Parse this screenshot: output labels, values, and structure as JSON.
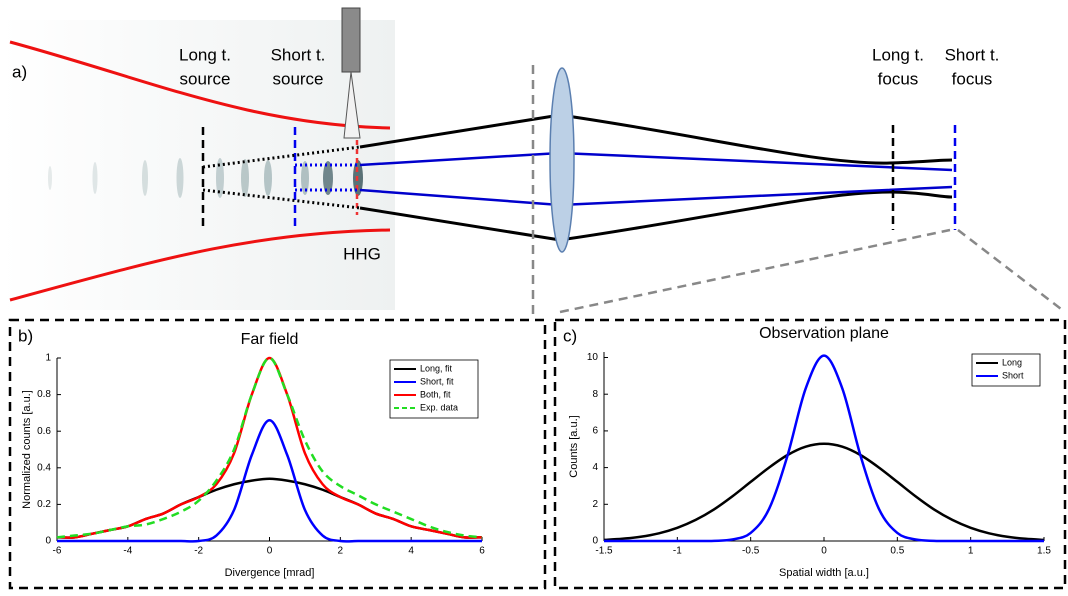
{
  "diagram": {
    "label": "a)",
    "long_source": [
      "Long t.",
      "source"
    ],
    "short_source": [
      "Short t.",
      "source"
    ],
    "hhg": "HHG",
    "long_focus": [
      "Long t.",
      "focus"
    ],
    "short_focus": [
      "Short t.",
      "focus"
    ]
  },
  "chart_data": [
    {
      "type": "line",
      "panel_label": "b)",
      "title": "Far field",
      "x_label": "Divergence [mrad]",
      "y_label": "Normalized counts [a.u.]",
      "x": [
        -6,
        -5.5,
        -5,
        -4.5,
        -4,
        -3.5,
        -3,
        -2.5,
        -2,
        -1.5,
        -1,
        -0.5,
        0,
        0.5,
        1,
        1.5,
        2,
        2.5,
        3,
        3.5,
        4,
        4.5,
        5,
        5.5,
        6
      ],
      "series": [
        {
          "name": "Long, fit",
          "color": "#000000",
          "style": "solid",
          "values": [
            0.02,
            0.02,
            0.04,
            0.06,
            0.08,
            0.12,
            0.15,
            0.2,
            0.24,
            0.28,
            0.31,
            0.33,
            0.34,
            0.33,
            0.31,
            0.28,
            0.24,
            0.2,
            0.15,
            0.12,
            0.08,
            0.06,
            0.04,
            0.02,
            0.02
          ]
        },
        {
          "name": "Short, fit",
          "color": "#0000ff",
          "style": "solid",
          "values": [
            0,
            0,
            0,
            0,
            0,
            0,
            0,
            0,
            0,
            0.03,
            0.17,
            0.47,
            0.66,
            0.47,
            0.17,
            0.03,
            0,
            0,
            0,
            0,
            0,
            0,
            0,
            0,
            0
          ]
        },
        {
          "name": "Both, fit",
          "color": "#ff0000",
          "style": "solid",
          "values": [
            0.02,
            0.02,
            0.04,
            0.06,
            0.08,
            0.12,
            0.15,
            0.2,
            0.24,
            0.31,
            0.48,
            0.8,
            1.0,
            0.8,
            0.48,
            0.31,
            0.24,
            0.2,
            0.15,
            0.12,
            0.08,
            0.06,
            0.04,
            0.02,
            0.02
          ]
        },
        {
          "name": "Exp. data",
          "color": "#22dd22",
          "style": "dashed",
          "values": [
            0.02,
            0.03,
            0.04,
            0.06,
            0.08,
            0.09,
            0.12,
            0.16,
            0.22,
            0.33,
            0.5,
            0.8,
            1.0,
            0.8,
            0.55,
            0.38,
            0.3,
            0.25,
            0.2,
            0.16,
            0.12,
            0.08,
            0.05,
            0.03,
            0.02
          ]
        }
      ],
      "xlim": [
        -6,
        6
      ],
      "ylim": [
        0,
        1
      ],
      "xticks": [
        -6,
        -4,
        -2,
        0,
        2,
        4,
        6
      ],
      "yticks": [
        0,
        0.2,
        0.4,
        0.6,
        0.8,
        1
      ],
      "legend": "top-right"
    },
    {
      "type": "line",
      "panel_label": "c)",
      "title": "Observation plane",
      "x_label": "Spatial width [a.u.]",
      "y_label": "Counts [a.u.]",
      "x": [
        -1.5,
        -1.375,
        -1.25,
        -1.125,
        -1,
        -0.875,
        -0.75,
        -0.625,
        -0.5,
        -0.375,
        -0.25,
        -0.125,
        0,
        0.125,
        0.25,
        0.375,
        0.5,
        0.625,
        0.75,
        0.875,
        1,
        1.125,
        1.25,
        1.375,
        1.5
      ],
      "series": [
        {
          "name": "Long",
          "color": "#000000",
          "style": "solid",
          "values": [
            0.06,
            0.12,
            0.23,
            0.42,
            0.72,
            1.15,
            1.72,
            2.43,
            3.22,
            4.0,
            4.68,
            5.14,
            5.3,
            5.14,
            4.68,
            4.0,
            3.22,
            2.43,
            1.72,
            1.15,
            0.72,
            0.42,
            0.23,
            0.12,
            0.06
          ]
        },
        {
          "name": "Short",
          "color": "#0000ff",
          "style": "solid",
          "values": [
            0,
            0,
            0,
            0,
            0,
            0,
            0.01,
            0.08,
            0.44,
            1.74,
            4.62,
            8.31,
            10.1,
            8.31,
            4.62,
            1.74,
            0.44,
            0.08,
            0.01,
            0,
            0,
            0,
            0,
            0,
            0
          ]
        }
      ],
      "xlim": [
        -1.5,
        1.5
      ],
      "ylim": [
        0,
        10.3
      ],
      "xticks": [
        -1.5,
        -1,
        -0.5,
        0,
        0.5,
        1,
        1.5
      ],
      "yticks": [
        0,
        2,
        4,
        6,
        8,
        10
      ],
      "legend": "top-right"
    }
  ]
}
